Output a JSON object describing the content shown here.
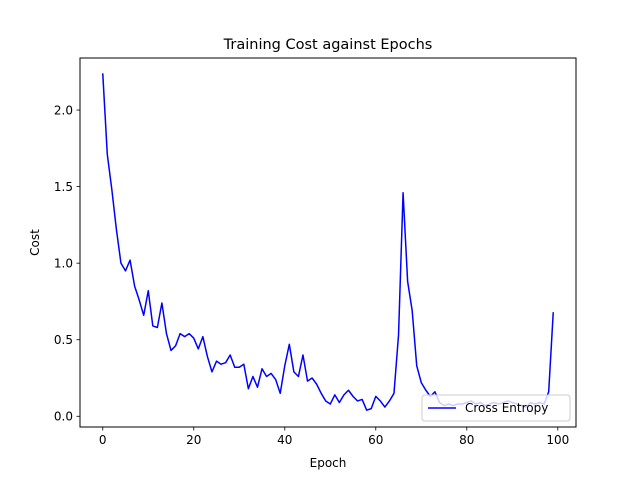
{
  "chart_data": {
    "type": "line",
    "title": "Training Cost against Epochs",
    "xlabel": "Epoch",
    "ylabel": "Cost",
    "xlim": [
      -5,
      104
    ],
    "ylim": [
      -0.07,
      2.34
    ],
    "xticks": [
      0,
      20,
      40,
      60,
      80,
      100
    ],
    "yticks": [
      0.0,
      0.5,
      1.0,
      1.5,
      2.0
    ],
    "ytick_labels": [
      "0.0",
      "0.5",
      "1.0",
      "1.5",
      "2.0"
    ],
    "grid": false,
    "legend_position": "lower-right",
    "series": [
      {
        "name": "Cross Entropy",
        "color": "#0000ff",
        "x": [
          0,
          1,
          2,
          3,
          4,
          5,
          6,
          7,
          8,
          9,
          10,
          11,
          12,
          13,
          14,
          15,
          16,
          17,
          18,
          19,
          20,
          21,
          22,
          23,
          24,
          25,
          26,
          27,
          28,
          29,
          30,
          31,
          32,
          33,
          34,
          35,
          36,
          37,
          38,
          39,
          40,
          41,
          42,
          43,
          44,
          45,
          46,
          47,
          48,
          49,
          50,
          51,
          52,
          53,
          54,
          55,
          56,
          57,
          58,
          59,
          60,
          61,
          62,
          63,
          64,
          65,
          66,
          67,
          68,
          69,
          70,
          71,
          72,
          73,
          74,
          75,
          76,
          77,
          78,
          79,
          80,
          81,
          82,
          83,
          84,
          85,
          86,
          87,
          88,
          89,
          90,
          91,
          92,
          93,
          94,
          95,
          96,
          97,
          98,
          99
        ],
        "values": [
          2.24,
          1.71,
          1.48,
          1.22,
          1.0,
          0.95,
          1.02,
          0.85,
          0.76,
          0.66,
          0.82,
          0.59,
          0.58,
          0.74,
          0.54,
          0.43,
          0.46,
          0.54,
          0.52,
          0.54,
          0.51,
          0.44,
          0.52,
          0.39,
          0.29,
          0.36,
          0.34,
          0.35,
          0.4,
          0.32,
          0.32,
          0.34,
          0.18,
          0.26,
          0.19,
          0.31,
          0.26,
          0.28,
          0.24,
          0.15,
          0.33,
          0.47,
          0.29,
          0.26,
          0.4,
          0.23,
          0.25,
          0.21,
          0.15,
          0.1,
          0.08,
          0.14,
          0.09,
          0.14,
          0.17,
          0.13,
          0.1,
          0.11,
          0.04,
          0.05,
          0.13,
          0.1,
          0.06,
          0.1,
          0.15,
          0.53,
          1.46,
          0.88,
          0.69,
          0.33,
          0.22,
          0.17,
          0.13,
          0.16,
          0.09,
          0.07,
          0.08,
          0.07,
          0.08,
          0.08,
          0.09,
          0.1,
          0.08,
          0.09,
          0.07,
          0.08,
          0.09,
          0.08,
          0.09,
          0.1,
          0.09,
          0.08,
          0.07,
          0.06,
          0.09,
          0.08,
          0.09,
          0.08,
          0.16,
          0.68
        ]
      }
    ]
  }
}
